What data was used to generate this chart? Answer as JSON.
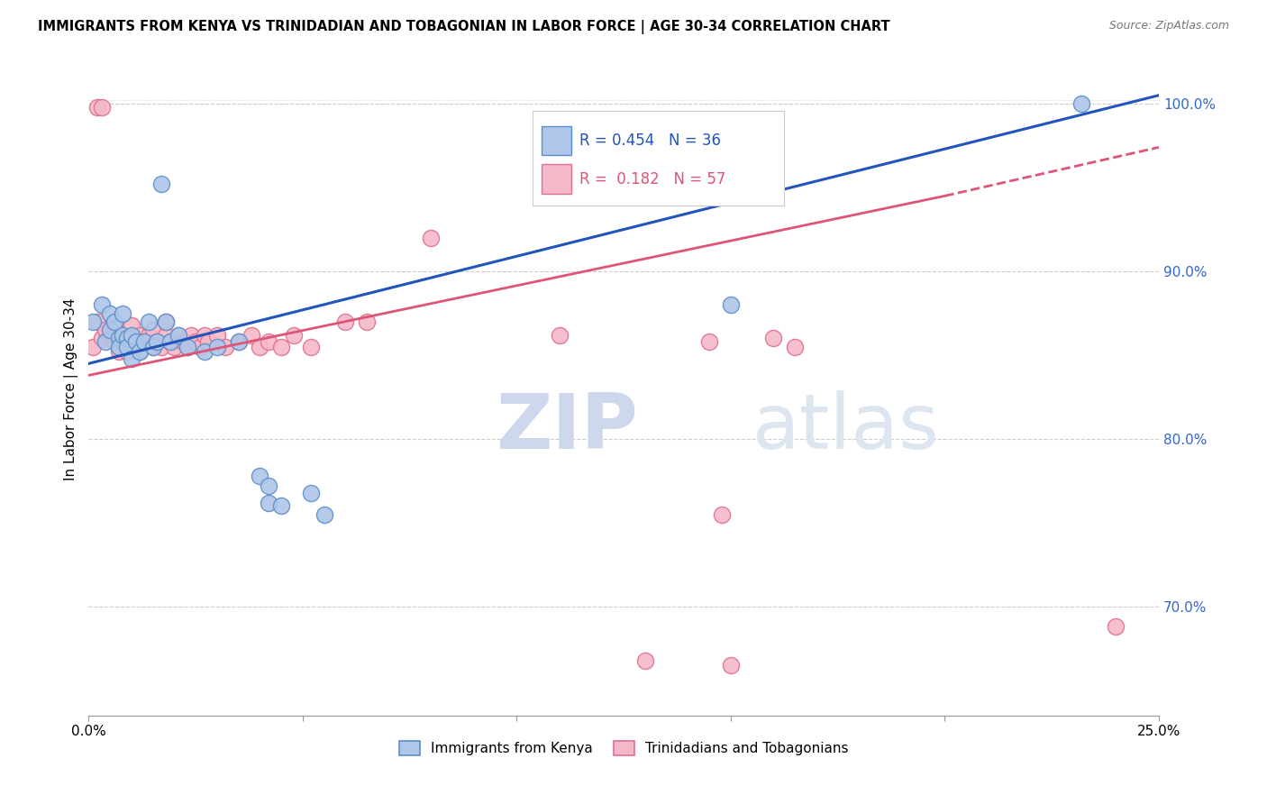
{
  "title": "IMMIGRANTS FROM KENYA VS TRINIDADIAN AND TOBAGONIAN IN LABOR FORCE | AGE 30-34 CORRELATION CHART",
  "source": "Source: ZipAtlas.com",
  "ylabel": "In Labor Force | Age 30-34",
  "xlim": [
    0.0,
    0.25
  ],
  "ylim": [
    0.635,
    1.025
  ],
  "xticks": [
    0.0,
    0.05,
    0.1,
    0.15,
    0.2,
    0.25
  ],
  "xticklabels": [
    "0.0%",
    "",
    "",
    "",
    "",
    "25.0%"
  ],
  "yticks_right": [
    0.7,
    0.8,
    0.9,
    1.0
  ],
  "ytick_labels_right": [
    "70.0%",
    "80.0%",
    "90.0%",
    "100.0%"
  ],
  "grid_yticks": [
    0.7,
    0.8,
    0.9,
    1.0
  ],
  "kenya_R": 0.454,
  "kenya_N": 36,
  "tnt_R": 0.182,
  "tnt_N": 57,
  "kenya_color": "#aec6e8",
  "tnt_color": "#f4b8c8",
  "kenya_edge": "#5b8fc9",
  "tnt_edge": "#e07090",
  "trend_kenya_color": "#2255bb",
  "trend_tnt_color": "#dd5577",
  "watermark_zip": "ZIP",
  "watermark_atlas": "atlas",
  "kenya_x": [
    0.001,
    0.003,
    0.004,
    0.005,
    0.005,
    0.006,
    0.007,
    0.007,
    0.008,
    0.008,
    0.009,
    0.009,
    0.01,
    0.01,
    0.011,
    0.012,
    0.013,
    0.014,
    0.015,
    0.016,
    0.017,
    0.018,
    0.019,
    0.021,
    0.023,
    0.027,
    0.03,
    0.035,
    0.04,
    0.042,
    0.042,
    0.045,
    0.052,
    0.055,
    0.15,
    0.232
  ],
  "kenya_y": [
    0.87,
    0.88,
    0.858,
    0.865,
    0.875,
    0.87,
    0.86,
    0.855,
    0.862,
    0.875,
    0.86,
    0.855,
    0.848,
    0.862,
    0.858,
    0.852,
    0.858,
    0.87,
    0.855,
    0.858,
    0.952,
    0.87,
    0.858,
    0.862,
    0.855,
    0.852,
    0.855,
    0.858,
    0.778,
    0.772,
    0.762,
    0.76,
    0.768,
    0.755,
    0.88,
    1.0
  ],
  "tnt_x": [
    0.001,
    0.002,
    0.002,
    0.003,
    0.003,
    0.004,
    0.005,
    0.006,
    0.006,
    0.007,
    0.008,
    0.008,
    0.009,
    0.009,
    0.01,
    0.01,
    0.011,
    0.012,
    0.012,
    0.013,
    0.014,
    0.015,
    0.015,
    0.016,
    0.017,
    0.018,
    0.018,
    0.019,
    0.02,
    0.021,
    0.022,
    0.023,
    0.024,
    0.025,
    0.026,
    0.027,
    0.028,
    0.03,
    0.032,
    0.035,
    0.038,
    0.04,
    0.042,
    0.045,
    0.048,
    0.052,
    0.06,
    0.065,
    0.08,
    0.11,
    0.13,
    0.145,
    0.148,
    0.15,
    0.16,
    0.165,
    0.24
  ],
  "tnt_y": [
    0.855,
    0.87,
    0.998,
    0.998,
    0.86,
    0.865,
    0.86,
    0.858,
    0.868,
    0.852,
    0.858,
    0.862,
    0.852,
    0.86,
    0.855,
    0.868,
    0.858,
    0.852,
    0.862,
    0.858,
    0.862,
    0.855,
    0.865,
    0.858,
    0.855,
    0.862,
    0.87,
    0.858,
    0.855,
    0.862,
    0.858,
    0.855,
    0.862,
    0.858,
    0.855,
    0.862,
    0.858,
    0.862,
    0.855,
    0.858,
    0.862,
    0.855,
    0.858,
    0.855,
    0.862,
    0.855,
    0.87,
    0.87,
    0.92,
    0.862,
    0.668,
    0.858,
    0.755,
    0.665,
    0.86,
    0.855,
    0.688
  ]
}
